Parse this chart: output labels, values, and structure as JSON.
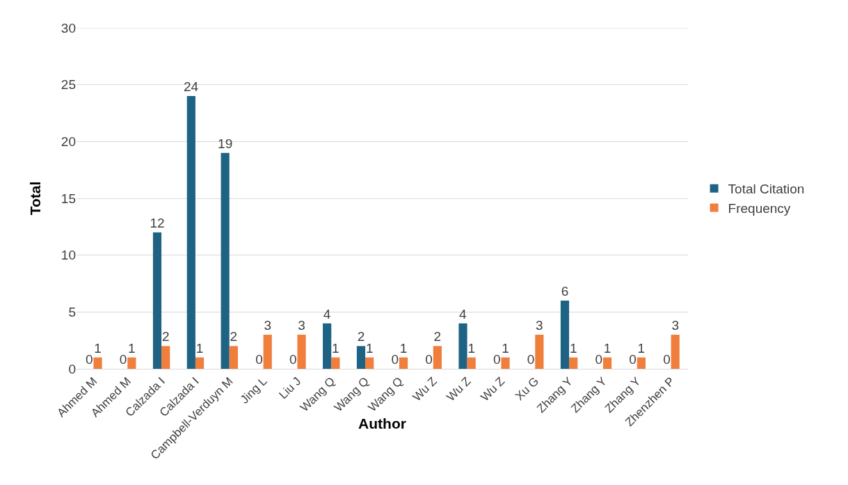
{
  "chart_data": {
    "type": "bar",
    "xlabel": "Author",
    "ylabel": "Total",
    "categories": [
      "Ahmed M",
      "Ahmed M",
      "Calzada I",
      "Calzada I",
      "Campbell-Verduyn M",
      "Jing L",
      "Liu J",
      "Wang Q",
      "Wang Q",
      "Wang Q",
      "Wu Z",
      "Wu Z",
      "Wu Z",
      "Xu G",
      "Zhang Y",
      "Zhang Y",
      "Zhang Y",
      "Zhenzhen P"
    ],
    "series": [
      {
        "name": "Total Citation",
        "color": "#1f6384",
        "values": [
          0,
          0,
          12,
          24,
          19,
          0,
          0,
          4,
          2,
          0,
          0,
          4,
          0,
          0,
          6,
          0,
          0,
          0
        ]
      },
      {
        "name": "Frequency",
        "color": "#f07e3c",
        "values": [
          1,
          1,
          2,
          1,
          2,
          3,
          3,
          1,
          1,
          1,
          2,
          1,
          1,
          3,
          1,
          1,
          1,
          3
        ]
      }
    ],
    "ylim": [
      0,
      30
    ],
    "yticks": [
      0,
      5,
      10,
      15,
      20,
      25,
      30
    ],
    "grid": "y",
    "legend": "right",
    "data_labels": true
  }
}
